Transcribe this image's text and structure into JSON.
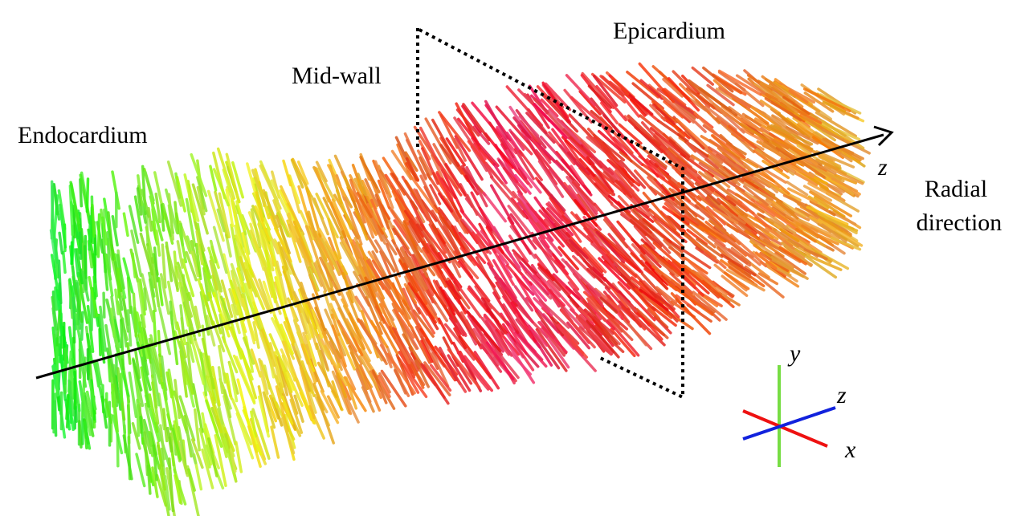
{
  "labels": {
    "endocardium": "Endocardium",
    "mid_wall": "Mid-wall",
    "epicardium": "Epicardium",
    "axis_z": "z",
    "radial_direction": [
      "Radial",
      "direction"
    ]
  },
  "axes_legend": {
    "y": "y",
    "z": "z",
    "x": "x"
  }
}
